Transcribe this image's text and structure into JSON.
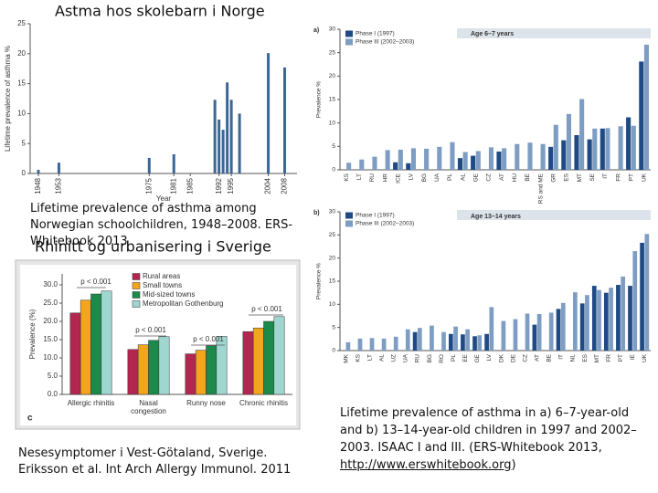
{
  "chart_data": [
    {
      "type": "bar",
      "title": "Astma hos skolebarn i Norge",
      "y_label": "Lifetime prevalence of asthma %",
      "x_label": "Year",
      "x": [
        1948,
        1953,
        1975,
        1981,
        1991,
        1992,
        1993,
        1994,
        1995,
        1997,
        2004,
        2008
      ],
      "values": [
        0.6,
        1.8,
        2.6,
        3.2,
        12.3,
        9.0,
        7.3,
        15.2,
        12.3,
        10.0,
        20.1,
        17.7
      ],
      "color": "#3b6796",
      "xlim": [
        1946,
        2011
      ],
      "xticks": [
        1948,
        1953,
        1975,
        1981,
        1985,
        1992,
        1995,
        2004,
        2008
      ],
      "ylim": [
        0,
        25
      ],
      "yticks": [
        0,
        5,
        10,
        15,
        20,
        25
      ],
      "caption": "Lifetime prevalence of asthma among Norwegian schoolchildren, 1948–2008. ERS-Whitebook 2013"
    },
    {
      "type": "bar",
      "title": "Rhinitt og urbanisering i Sverige",
      "panel": "c",
      "y_label": "Prevalence (%)",
      "categories": [
        "Allergic rhinitis",
        "Nasal congestion",
        "Runny nose",
        "Chronic rhinitis"
      ],
      "series": [
        {
          "name": "Rural areas",
          "color": "#b3264f",
          "values": [
            22.3,
            12.3,
            11.1,
            17.2
          ]
        },
        {
          "name": "Small towns",
          "color": "#f3a51c",
          "values": [
            25.8,
            13.6,
            12.1,
            18.2
          ]
        },
        {
          "name": "Mid-sized towns",
          "color": "#1b8a4b",
          "values": [
            27.5,
            14.8,
            13.3,
            20.0
          ]
        },
        {
          "name": "Metropolitan Gothenburg",
          "color": "#9fd6d0",
          "values": [
            28.3,
            15.8,
            15.9,
            21.3
          ]
        }
      ],
      "ylim": [
        0,
        33
      ],
      "yticks": [
        {
          "value": 0,
          "label": "0.0"
        },
        {
          "value": 5,
          "label": "5.0"
        },
        {
          "value": 10,
          "label": "10.0"
        },
        {
          "value": 15,
          "label": "15.0"
        },
        {
          "value": 20,
          "label": "20.0"
        },
        {
          "value": 25,
          "label": "25.0"
        },
        {
          "value": 30,
          "label": "30.0"
        }
      ],
      "annotations": [
        "p < 0.001",
        "p < 0.001",
        "p < 0.001",
        "p < 0.001"
      ],
      "caption": "Nesesymptomer i Vest-Götaland, Sverige. Eriksson et al. Int Arch Allergy Immunol. 2011"
    },
    {
      "type": "bar",
      "panel": "a)",
      "subtitle": "Age 6–7 years",
      "y_label": "Prevalence %",
      "categories": [
        "KS",
        "LT",
        "RU",
        "HR",
        "ICE",
        "LV",
        "BG",
        "UA",
        "PL",
        "AL",
        "GE",
        "CZ",
        "AT",
        "HU",
        "BE",
        "RS and ME",
        "GR",
        "ES",
        "MT",
        "SE",
        "IT",
        "FR",
        "PT",
        "UK"
      ],
      "series": [
        {
          "name": "Phase I (1997)",
          "color": "#1f4a84",
          "values": [
            null,
            null,
            null,
            null,
            1.6,
            1.4,
            null,
            null,
            null,
            2.5,
            3.0,
            null,
            3.9,
            null,
            null,
            null,
            4.9,
            6.3,
            7.4,
            6.5,
            8.8,
            null,
            11.2,
            23.1
          ]
        },
        {
          "name": "Phase III (2002–2003)",
          "color": "#7d9dc3",
          "values": [
            1.5,
            2.2,
            2.8,
            4.2,
            4.3,
            4.6,
            4.5,
            4.9,
            5.9,
            3.8,
            4.0,
            4.8,
            4.6,
            5.5,
            5.8,
            5.5,
            9.6,
            11.9,
            15.1,
            8.8,
            8.9,
            9.3,
            9.4,
            26.7
          ]
        }
      ],
      "ylim": [
        0,
        30
      ],
      "yticks": [
        0,
        5,
        10,
        15,
        20,
        25,
        30
      ]
    },
    {
      "type": "bar",
      "panel": "b)",
      "subtitle": "Age 13–14 years",
      "y_label": "Prevalence %",
      "categories": [
        "MK",
        "KS",
        "LT",
        "AL",
        "UZ",
        "UA",
        "RU",
        "BG",
        "RO",
        "PL",
        "EE",
        "GE",
        "LV",
        "DK",
        "DE",
        "CZ",
        "AT",
        "BE",
        "IT",
        "NL",
        "ES",
        "MT",
        "FR",
        "PT",
        "IE",
        "UK"
      ],
      "series": [
        {
          "name": "Phase I (1997)",
          "color": "#1f4a84",
          "values": [
            null,
            null,
            null,
            null,
            null,
            null,
            4.0,
            null,
            null,
            3.6,
            3.5,
            3.1,
            3.6,
            null,
            null,
            null,
            5.6,
            null,
            9.0,
            null,
            10.2,
            14.0,
            12.5,
            14.2,
            14.0,
            23.3
          ]
        },
        {
          "name": "Phase III (2002–2003)",
          "color": "#7d9dc3",
          "values": [
            1.8,
            2.6,
            2.7,
            2.6,
            3.0,
            4.6,
            4.9,
            5.4,
            4.0,
            5.2,
            4.6,
            3.3,
            9.4,
            6.4,
            6.8,
            8.0,
            7.9,
            8.2,
            10.3,
            12.6,
            12.0,
            13.1,
            13.6,
            16.0,
            21.5,
            25.2
          ]
        }
      ],
      "ylim": [
        0,
        30
      ],
      "yticks": [
        0,
        5,
        10,
        15,
        20,
        25,
        30
      ]
    }
  ],
  "caption": {
    "text": "Lifetime prevalence of asthma in a) 6–7-year-old and b) 13–14-year-old children in 1997 and 2002–2003. ISAAC I and III. (ERS-Whitebook 2013, ",
    "link": "http://www.erswhitebook.org",
    "end": ")"
  }
}
